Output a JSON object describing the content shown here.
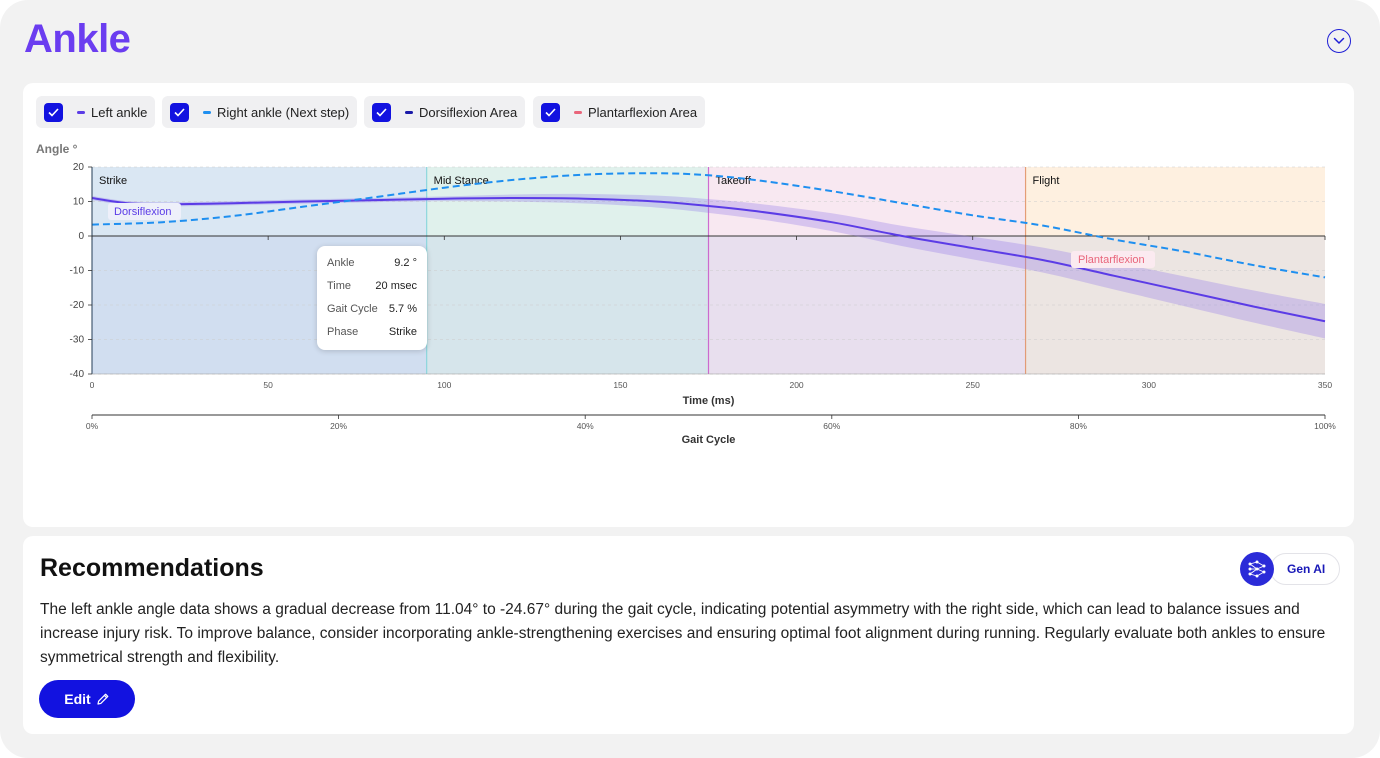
{
  "header": {
    "title": "Ankle"
  },
  "legend": [
    {
      "label": "Left ankle",
      "color": "#5b3ce6",
      "checked": true
    },
    {
      "label": "Right ankle (Next step)",
      "color": "#1e8ff0",
      "checked": true
    },
    {
      "label": "Dorsiflexion Area",
      "color": "#1a1aa8",
      "checked": true
    },
    {
      "label": "Plantarflexion Area",
      "color": "#e9657b",
      "checked": true
    }
  ],
  "tooltip": {
    "rows": [
      {
        "label": "Ankle",
        "value": "9.2 °"
      },
      {
        "label": "Time",
        "value": "20 msec"
      },
      {
        "label": "Gait Cycle",
        "value": "5.7 %"
      },
      {
        "label": "Phase",
        "value": "Strike"
      }
    ]
  },
  "chart_data": {
    "type": "line",
    "ylabel": "Angle °",
    "xlabel": "Time (ms)",
    "x2label": "Gait Cycle",
    "ylim": [
      -40,
      20
    ],
    "xlim": [
      0,
      350
    ],
    "yticks": [
      "20",
      "10",
      "0",
      "-10",
      "-20",
      "-30",
      "-40"
    ],
    "xticks": [
      "0",
      "50",
      "100",
      "150",
      "200",
      "250",
      "300",
      "350"
    ],
    "x2ticks": [
      "0%",
      "20%",
      "40%",
      "60%",
      "80%",
      "100%"
    ],
    "phases": [
      {
        "name": "Strike",
        "start": 0,
        "end": 95,
        "color": "#bcd3ea"
      },
      {
        "name": "Mid Stance",
        "start": 95,
        "end": 175,
        "color": "#c7e6dc"
      },
      {
        "name": "Takeoff",
        "start": 175,
        "end": 265,
        "color": "#f3d6e6"
      },
      {
        "name": "Flight",
        "start": 265,
        "end": 350,
        "color": "#fde3c6"
      }
    ],
    "annotations": {
      "dorsiflexion": "Dorsiflexion",
      "plantarflexion": "Plantarflexion"
    },
    "series": [
      {
        "name": "Left ankle",
        "color": "#5b3ce6",
        "x": [
          0,
          10,
          20,
          30,
          40,
          60,
          80,
          100,
          120,
          140,
          160,
          175,
          190,
          210,
          230,
          250,
          270,
          290,
          310,
          330,
          350
        ],
        "y": [
          11.0,
          9.5,
          9.2,
          9.3,
          9.5,
          10.0,
          10.4,
          10.8,
          11.0,
          10.8,
          10.0,
          8.7,
          7.0,
          4.0,
          0.0,
          -3.5,
          -7.0,
          -11.5,
          -16.0,
          -20.5,
          -24.7
        ]
      },
      {
        "name": "Right ankle (Next step)",
        "color": "#1e8ff0",
        "x": [
          0,
          20,
          40,
          60,
          80,
          100,
          120,
          140,
          160,
          175,
          190,
          210,
          230,
          250,
          270,
          290,
          310,
          330,
          350
        ],
        "y": [
          3.3,
          4.0,
          5.8,
          8.5,
          11.2,
          14.0,
          16.3,
          17.8,
          18.2,
          17.6,
          16.0,
          13.0,
          9.5,
          6.0,
          3.0,
          -1.0,
          -4.5,
          -8.5,
          -12.0
        ]
      }
    ]
  },
  "recommendations": {
    "title": "Recommendations",
    "gen_ai_label": "Gen AI",
    "text": "The left ankle angle data shows a gradual decrease from 11.04° to -24.67° during the gait cycle, indicating potential asymmetry with the right side, which can lead to balance issues and increase injury risk. To improve balance, consider incorporating ankle-strengthening exercises and ensuring optimal foot alignment during running. Regularly evaluate both ankles to ensure symmetrical strength and flexibility.",
    "edit_label": "Edit"
  }
}
